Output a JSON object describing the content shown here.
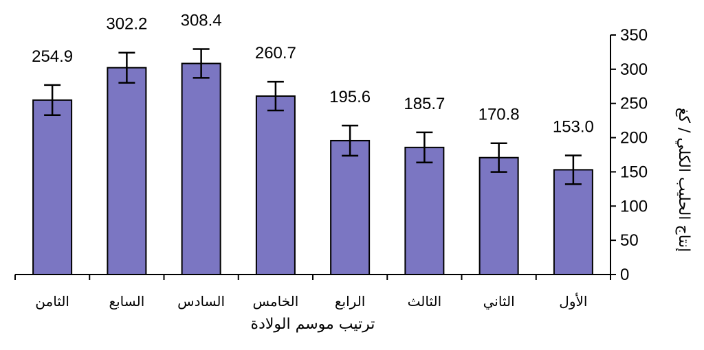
{
  "chart_data": {
    "type": "bar",
    "categories": [
      "الثامن",
      "السابع",
      "السادس",
      "الخامس",
      "الرابع",
      "الثالث",
      "الثاني",
      "الأول"
    ],
    "values": [
      254.9,
      302.2,
      308.4,
      260.7,
      195.6,
      185.7,
      170.8,
      153.0
    ],
    "value_labels": [
      "254.9",
      "302.2",
      "308.4",
      "260.7",
      "195.6",
      "185.7",
      "170.8",
      "153.0"
    ],
    "error_bars": [
      22,
      22,
      21,
      21,
      22,
      22,
      21,
      21
    ],
    "xlabel": "ترتيب موسم الولادة",
    "ylabel": "إنتاج الحليب الكلي / كغ",
    "ylim": [
      0,
      350
    ],
    "yticks": [
      0,
      50,
      100,
      150,
      200,
      250,
      300,
      350
    ],
    "y_axis_side": "right",
    "grid": false,
    "legend": "none",
    "colors": {
      "bar_fill": "#7b76c2",
      "bar_stroke": "#000000"
    }
  }
}
